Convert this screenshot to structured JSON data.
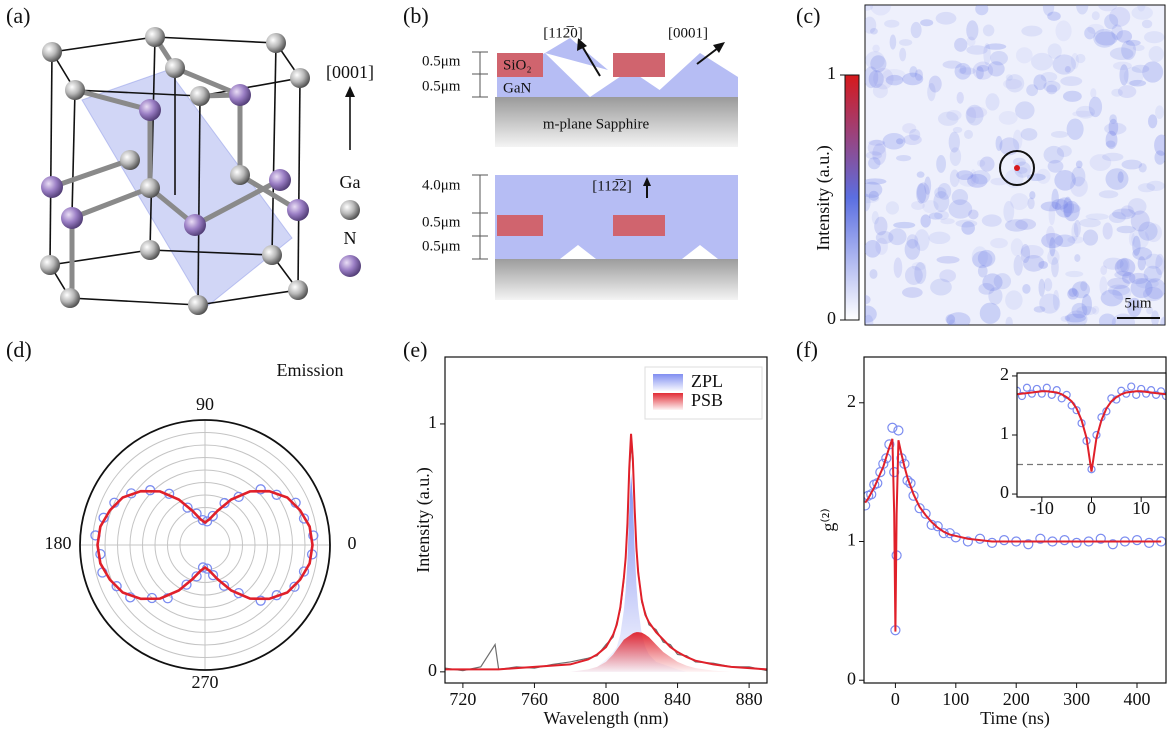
{
  "panel_labels": [
    "(a)",
    "(b)",
    "(c)",
    "(d)",
    "(e)",
    "(f)"
  ],
  "diagram_a": {
    "direction": "[0001]",
    "legend": [
      "Ga",
      "N"
    ]
  },
  "diagram_b": {
    "top": {
      "thickness_labels": [
        "0.5μm",
        "0.5μm"
      ],
      "materials": [
        "SiO₂",
        "GaN"
      ],
      "substrate": "m-plane Sapphire",
      "directions": [
        "[112̅0]",
        "[0001]"
      ]
    },
    "bottom": {
      "thickness_labels": [
        "4.0μm",
        "0.5μm",
        "0.5μm"
      ],
      "direction": "[112̅2]"
    }
  },
  "image_c": {
    "colorbar_label": "Intensity (a.u.)",
    "clim": [
      0,
      1
    ],
    "cticks": [
      0,
      1
    ],
    "colors": [
      "#ffffff",
      "#5b6ee1",
      "#d7191c"
    ],
    "scale_bar": "5μm"
  },
  "chart_data": [
    {
      "type": "polar",
      "annotation": "Emission",
      "rlim": [
        0,
        1
      ],
      "rticks": [
        0.2,
        0.3,
        0.4,
        0.5,
        0.6,
        0.7,
        0.8,
        0.9
      ],
      "thetaticks": [
        90,
        180,
        0,
        270
      ],
      "series": [
        {
          "style": "markers",
          "color": "#7b8cf0",
          "theta": [
            5,
            15,
            25,
            35,
            45,
            55,
            65,
            75,
            85,
            95,
            105,
            115,
            125,
            135,
            145,
            155,
            165,
            175,
            185,
            195,
            205,
            215,
            225,
            235,
            245,
            255,
            265,
            275,
            285,
            295,
            305,
            315,
            325,
            335,
            345,
            355
          ],
          "values": [
            0.87,
            0.82,
            0.8,
            0.7,
            0.63,
            0.47,
            0.37,
            0.24,
            0.19,
            0.2,
            0.26,
            0.33,
            0.5,
            0.62,
            0.72,
            0.8,
            0.84,
            0.88,
            0.84,
            0.85,
            0.78,
            0.73,
            0.6,
            0.52,
            0.35,
            0.26,
            0.18,
            0.19,
            0.25,
            0.36,
            0.47,
            0.63,
            0.7,
            0.79,
            0.82,
            0.86
          ]
        },
        {
          "style": "line",
          "color": "#e0202a",
          "theta": [
            0,
            10,
            20,
            30,
            40,
            50,
            60,
            70,
            80,
            90,
            100,
            110,
            120,
            130,
            140,
            150,
            160,
            170,
            180,
            190,
            200,
            210,
            220,
            230,
            240,
            250,
            260,
            270,
            280,
            290,
            300,
            310,
            320,
            330,
            340,
            350
          ],
          "values": [
            0.86,
            0.85,
            0.81,
            0.76,
            0.67,
            0.56,
            0.42,
            0.29,
            0.21,
            0.18,
            0.21,
            0.29,
            0.42,
            0.56,
            0.67,
            0.76,
            0.81,
            0.85,
            0.86,
            0.85,
            0.81,
            0.76,
            0.67,
            0.56,
            0.42,
            0.29,
            0.21,
            0.18,
            0.21,
            0.29,
            0.42,
            0.56,
            0.67,
            0.76,
            0.81,
            0.85
          ]
        }
      ]
    },
    {
      "type": "line",
      "xlabel": "Wavelength (nm)",
      "ylabel": "Intensity (a.u.)",
      "xlim": [
        710,
        890
      ],
      "ylim": [
        -0.045,
        1.27
      ],
      "xticks": [
        720,
        760,
        800,
        840,
        880
      ],
      "yticks": [
        0,
        1
      ],
      "legend": "upper right",
      "x": [
        710,
        720,
        730,
        738,
        740,
        750,
        760,
        770,
        780,
        790,
        795,
        800,
        804,
        806,
        808,
        810,
        811,
        812,
        813,
        814,
        815,
        816,
        817,
        818,
        820,
        822,
        824,
        828,
        832,
        836,
        840,
        845,
        850,
        860,
        870,
        880,
        890
      ],
      "series": [
        {
          "name": "ZPL",
          "style": "area",
          "color": "#7a88f0",
          "values": [
            0,
            0,
            0,
            0,
            0,
            0,
            0,
            0,
            0,
            0.01,
            0.02,
            0.05,
            0.08,
            0.1,
            0.15,
            0.25,
            0.33,
            0.45,
            0.65,
            0.8,
            0.7,
            0.5,
            0.35,
            0.26,
            0.15,
            0.1,
            0.07,
            0.04,
            0.03,
            0.02,
            0.01,
            0,
            0,
            0,
            0,
            0,
            0
          ]
        },
        {
          "name": "PSB",
          "style": "area",
          "color": "#e0202a",
          "values": [
            0,
            0,
            0,
            0,
            0,
            0,
            0,
            0,
            0,
            0.01,
            0.02,
            0.04,
            0.07,
            0.09,
            0.11,
            0.13,
            0.135,
            0.14,
            0.145,
            0.15,
            0.155,
            0.158,
            0.16,
            0.16,
            0.158,
            0.15,
            0.14,
            0.11,
            0.08,
            0.06,
            0.04,
            0.025,
            0.015,
            0.005,
            0,
            0,
            0
          ]
        },
        {
          "style": "line",
          "color": "#6e6e6e",
          "values": [
            0.015,
            0.005,
            0.02,
            0.11,
            0.01,
            0.02,
            0.015,
            0.03,
            0.04,
            0.055,
            0.065,
            0.11,
            0.14,
            0.2,
            0.25,
            0.37,
            0.47,
            0.58,
            0.8,
            0.92,
            0.84,
            0.67,
            0.49,
            0.41,
            0.28,
            0.24,
            0.19,
            0.17,
            0.12,
            0.11,
            0.07,
            0.065,
            0.04,
            0.035,
            0.02,
            0.02,
            0.005
          ]
        },
        {
          "style": "line",
          "color": "#e0202a",
          "values": [
            0.01,
            0.01,
            0.01,
            0.01,
            0.01,
            0.015,
            0.02,
            0.025,
            0.03,
            0.05,
            0.07,
            0.1,
            0.15,
            0.19,
            0.26,
            0.38,
            0.46,
            0.6,
            0.82,
            0.96,
            0.86,
            0.66,
            0.5,
            0.4,
            0.29,
            0.23,
            0.2,
            0.16,
            0.13,
            0.1,
            0.08,
            0.06,
            0.045,
            0.03,
            0.02,
            0.015,
            0.01
          ]
        }
      ]
    },
    {
      "type": "scatter",
      "xlabel": "Time (ns)",
      "ylabel": "g⁽²⁾",
      "xlim": [
        -52,
        448
      ],
      "ylim": [
        -0.02,
        2.33
      ],
      "xticks": [
        0,
        100,
        200,
        300,
        400
      ],
      "yticks": [
        0,
        1,
        2
      ],
      "x": [
        -50,
        -45,
        -40,
        -35,
        -30,
        -25,
        -20,
        -15,
        -10,
        -5,
        -2,
        0,
        2,
        5,
        10,
        15,
        20,
        25,
        30,
        40,
        50,
        60,
        70,
        80,
        90,
        100,
        120,
        140,
        160,
        180,
        200,
        220,
        240,
        260,
        280,
        300,
        320,
        340,
        360,
        380,
        400,
        420,
        440
      ],
      "series": [
        {
          "style": "markers",
          "color": "#7b8cf0",
          "values": [
            1.26,
            1.33,
            1.34,
            1.41,
            1.42,
            1.5,
            1.56,
            1.6,
            1.7,
            1.82,
            1.5,
            0.36,
            0.9,
            1.8,
            1.6,
            1.56,
            1.44,
            1.42,
            1.33,
            1.24,
            1.2,
            1.12,
            1.11,
            1.06,
            1.06,
            1.03,
            1.0,
            1.02,
            0.99,
            1.01,
            1.0,
            0.98,
            1.02,
            1.0,
            1.01,
            0.99,
            1.0,
            1.02,
            0.98,
            1.0,
            1.01,
            0.99,
            1.0
          ]
        },
        {
          "style": "line",
          "color": "#e0202a",
          "values": [
            1.28,
            1.31,
            1.35,
            1.39,
            1.44,
            1.49,
            1.54,
            1.61,
            1.68,
            1.74,
            1.2,
            0.35,
            1.2,
            1.73,
            1.63,
            1.54,
            1.46,
            1.4,
            1.34,
            1.25,
            1.19,
            1.14,
            1.1,
            1.07,
            1.05,
            1.04,
            1.02,
            1.01,
            1.0,
            1.0,
            1.0,
            1.0,
            1.0,
            1.0,
            1.0,
            1.0,
            1.0,
            1.0,
            1.0,
            1.0,
            1.0,
            1.0,
            1.0
          ]
        }
      ]
    },
    {
      "type": "scatter",
      "inset": true,
      "xlim": [
        -15,
        15
      ],
      "ylim": [
        -0.05,
        2.05
      ],
      "xticks": [
        -10,
        0,
        10
      ],
      "yticks": [
        0,
        1,
        2
      ],
      "hline": 0.5,
      "x": [
        -15,
        -14,
        -13,
        -12,
        -11,
        -10,
        -9,
        -8,
        -7,
        -6,
        -5,
        -4,
        -3,
        -2,
        -1,
        0,
        1,
        2,
        3,
        4,
        5,
        6,
        7,
        8,
        9,
        10,
        11,
        12,
        13,
        14,
        15
      ],
      "series": [
        {
          "style": "markers",
          "color": "#7b8cf0",
          "values": [
            1.75,
            1.66,
            1.8,
            1.7,
            1.78,
            1.7,
            1.8,
            1.68,
            1.76,
            1.62,
            1.68,
            1.5,
            1.42,
            1.2,
            0.9,
            0.42,
            1.0,
            1.3,
            1.4,
            1.62,
            1.6,
            1.75,
            1.7,
            1.82,
            1.68,
            1.78,
            1.7,
            1.76,
            1.68,
            1.74,
            1.66
          ]
        },
        {
          "style": "line",
          "color": "#e0202a",
          "values": [
            1.69,
            1.7,
            1.71,
            1.72,
            1.73,
            1.74,
            1.74,
            1.73,
            1.72,
            1.69,
            1.64,
            1.57,
            1.45,
            1.25,
            0.95,
            0.38,
            0.95,
            1.25,
            1.45,
            1.57,
            1.64,
            1.69,
            1.72,
            1.73,
            1.74,
            1.74,
            1.73,
            1.72,
            1.71,
            1.7,
            1.69
          ]
        }
      ]
    }
  ]
}
